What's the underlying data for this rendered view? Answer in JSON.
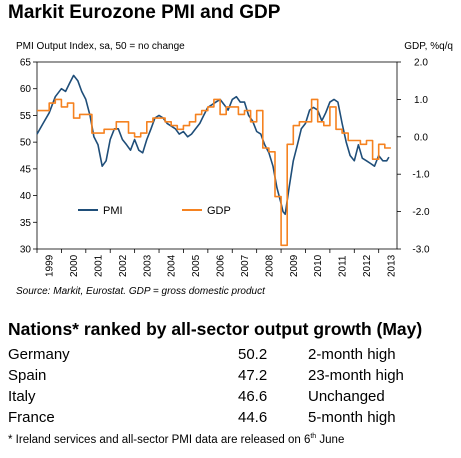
{
  "title": "Markit Eurozone PMI and GDP",
  "chart_data": {
    "type": "line",
    "left_axis_label": "PMI Output Index, sa, 50 = no change",
    "right_axis_label": "GDP, %q/q",
    "left_ticks": [
      "30",
      "35",
      "40",
      "45",
      "50",
      "55",
      "60",
      "65"
    ],
    "right_ticks": [
      "-3.0",
      "-2.0",
      "-1.0",
      "0.0",
      "1.0",
      "2.0"
    ],
    "ylim_left": [
      30,
      65
    ],
    "ylim_right": [
      -3,
      2
    ],
    "x_ticks": [
      "1999",
      "2000",
      "2001",
      "2002",
      "2003",
      "2004",
      "2005",
      "2006",
      "2007",
      "2008",
      "2009",
      "2010",
      "2011",
      "2012",
      "2013"
    ],
    "xlim": [
      1999.0,
      2013.75
    ],
    "legend_position": "lower-left",
    "series": [
      {
        "name": "PMI",
        "color": "#1f4e79",
        "axis": "left",
        "x": [
          1999.0,
          1999.25,
          1999.5,
          1999.75,
          2000.0,
          2000.17,
          2000.33,
          2000.5,
          2000.67,
          2000.83,
          2001.0,
          2001.17,
          2001.33,
          2001.5,
          2001.67,
          2001.83,
          2002.0,
          2002.17,
          2002.33,
          2002.5,
          2002.67,
          2002.83,
          2003.0,
          2003.17,
          2003.33,
          2003.5,
          2003.67,
          2003.83,
          2004.0,
          2004.17,
          2004.33,
          2004.5,
          2004.67,
          2004.83,
          2005.0,
          2005.17,
          2005.33,
          2005.5,
          2005.67,
          2005.83,
          2006.0,
          2006.17,
          2006.33,
          2006.5,
          2006.67,
          2006.83,
          2007.0,
          2007.17,
          2007.33,
          2007.5,
          2007.67,
          2007.83,
          2008.0,
          2008.17,
          2008.33,
          2008.5,
          2008.67,
          2008.83,
          2009.0,
          2009.08,
          2009.17,
          2009.33,
          2009.5,
          2009.67,
          2009.83,
          2010.0,
          2010.17,
          2010.33,
          2010.5,
          2010.67,
          2010.83,
          2011.0,
          2011.17,
          2011.33,
          2011.5,
          2011.67,
          2011.83,
          2012.0,
          2012.17,
          2012.33,
          2012.5,
          2012.67,
          2012.83,
          2013.0,
          2013.17,
          2013.33,
          2013.42
        ],
        "values": [
          51.5,
          53.5,
          55.5,
          58.5,
          60.0,
          59.5,
          61.0,
          62.5,
          61.5,
          59.5,
          58.0,
          55.0,
          51.0,
          49.5,
          45.5,
          46.5,
          50.5,
          52.5,
          52.5,
          50.5,
          49.5,
          48.5,
          50.5,
          48.5,
          48.0,
          50.5,
          52.5,
          54.5,
          55.0,
          54.5,
          53.5,
          53.0,
          52.5,
          51.5,
          52.0,
          51.0,
          51.5,
          52.5,
          53.5,
          55.0,
          56.5,
          57.0,
          57.5,
          58.0,
          57.0,
          56.0,
          58.0,
          58.5,
          57.5,
          57.5,
          55.0,
          54.0,
          52.0,
          51.5,
          49.5,
          48.0,
          45.5,
          41.5,
          38.5,
          37.0,
          36.5,
          41.5,
          46.5,
          49.5,
          52.5,
          53.5,
          56.0,
          56.5,
          56.0,
          54.0,
          55.5,
          57.5,
          58.0,
          57.5,
          53.5,
          50.0,
          47.5,
          46.5,
          49.5,
          47.0,
          46.5,
          46.0,
          45.5,
          47.5,
          46.5,
          46.5,
          47.2
        ]
      },
      {
        "name": "GDP",
        "color": "#f58220",
        "axis": "right",
        "x": [
          1999.0,
          1999.25,
          1999.5,
          1999.75,
          2000.0,
          2000.25,
          2000.5,
          2000.75,
          2001.0,
          2001.25,
          2001.5,
          2001.75,
          2002.0,
          2002.25,
          2002.5,
          2002.75,
          2003.0,
          2003.25,
          2003.5,
          2003.75,
          2004.0,
          2004.25,
          2004.5,
          2004.75,
          2005.0,
          2005.25,
          2005.5,
          2005.75,
          2006.0,
          2006.25,
          2006.5,
          2006.75,
          2007.0,
          2007.25,
          2007.5,
          2007.75,
          2008.0,
          2008.25,
          2008.5,
          2008.75,
          2009.0,
          2009.25,
          2009.5,
          2009.75,
          2010.0,
          2010.25,
          2010.5,
          2010.75,
          2011.0,
          2011.25,
          2011.5,
          2011.75,
          2012.0,
          2012.25,
          2012.5,
          2012.75,
          2013.0,
          2013.25
        ],
        "values": [
          0.7,
          0.7,
          0.9,
          1.0,
          0.8,
          0.9,
          0.5,
          0.6,
          0.6,
          0.1,
          0.1,
          0.2,
          0.2,
          0.4,
          0.4,
          0.1,
          0.0,
          0.1,
          0.4,
          0.5,
          0.5,
          0.4,
          0.3,
          0.2,
          0.3,
          0.4,
          0.6,
          0.7,
          0.8,
          1.0,
          0.6,
          0.8,
          0.8,
          0.6,
          0.7,
          0.4,
          0.7,
          -0.3,
          -0.4,
          -1.6,
          -2.9,
          -0.2,
          0.3,
          0.4,
          0.4,
          1.0,
          0.4,
          0.3,
          0.8,
          0.2,
          0.1,
          -0.1,
          -0.1,
          -0.2,
          -0.1,
          -0.6,
          -0.2,
          -0.3
        ]
      }
    ]
  },
  "source": "Source: Markit, Eurostat. GDP = gross domestic product",
  "table": {
    "title": "Nations* ranked by all-sector output growth (May)",
    "rows": [
      {
        "country": "Germany",
        "value": "50.2",
        "note": "2-month high"
      },
      {
        "country": "Spain",
        "value": "47.2",
        "note": "23-month high"
      },
      {
        "country": "Italy",
        "value": "46.6",
        "note": "Unchanged"
      },
      {
        "country": "France",
        "value": "44.6",
        "note": "5-month high"
      }
    ]
  },
  "footnote": {
    "text": "* Ireland services and all-sector PMI data are released on 6",
    "superscript": "th",
    "tail": " June"
  }
}
